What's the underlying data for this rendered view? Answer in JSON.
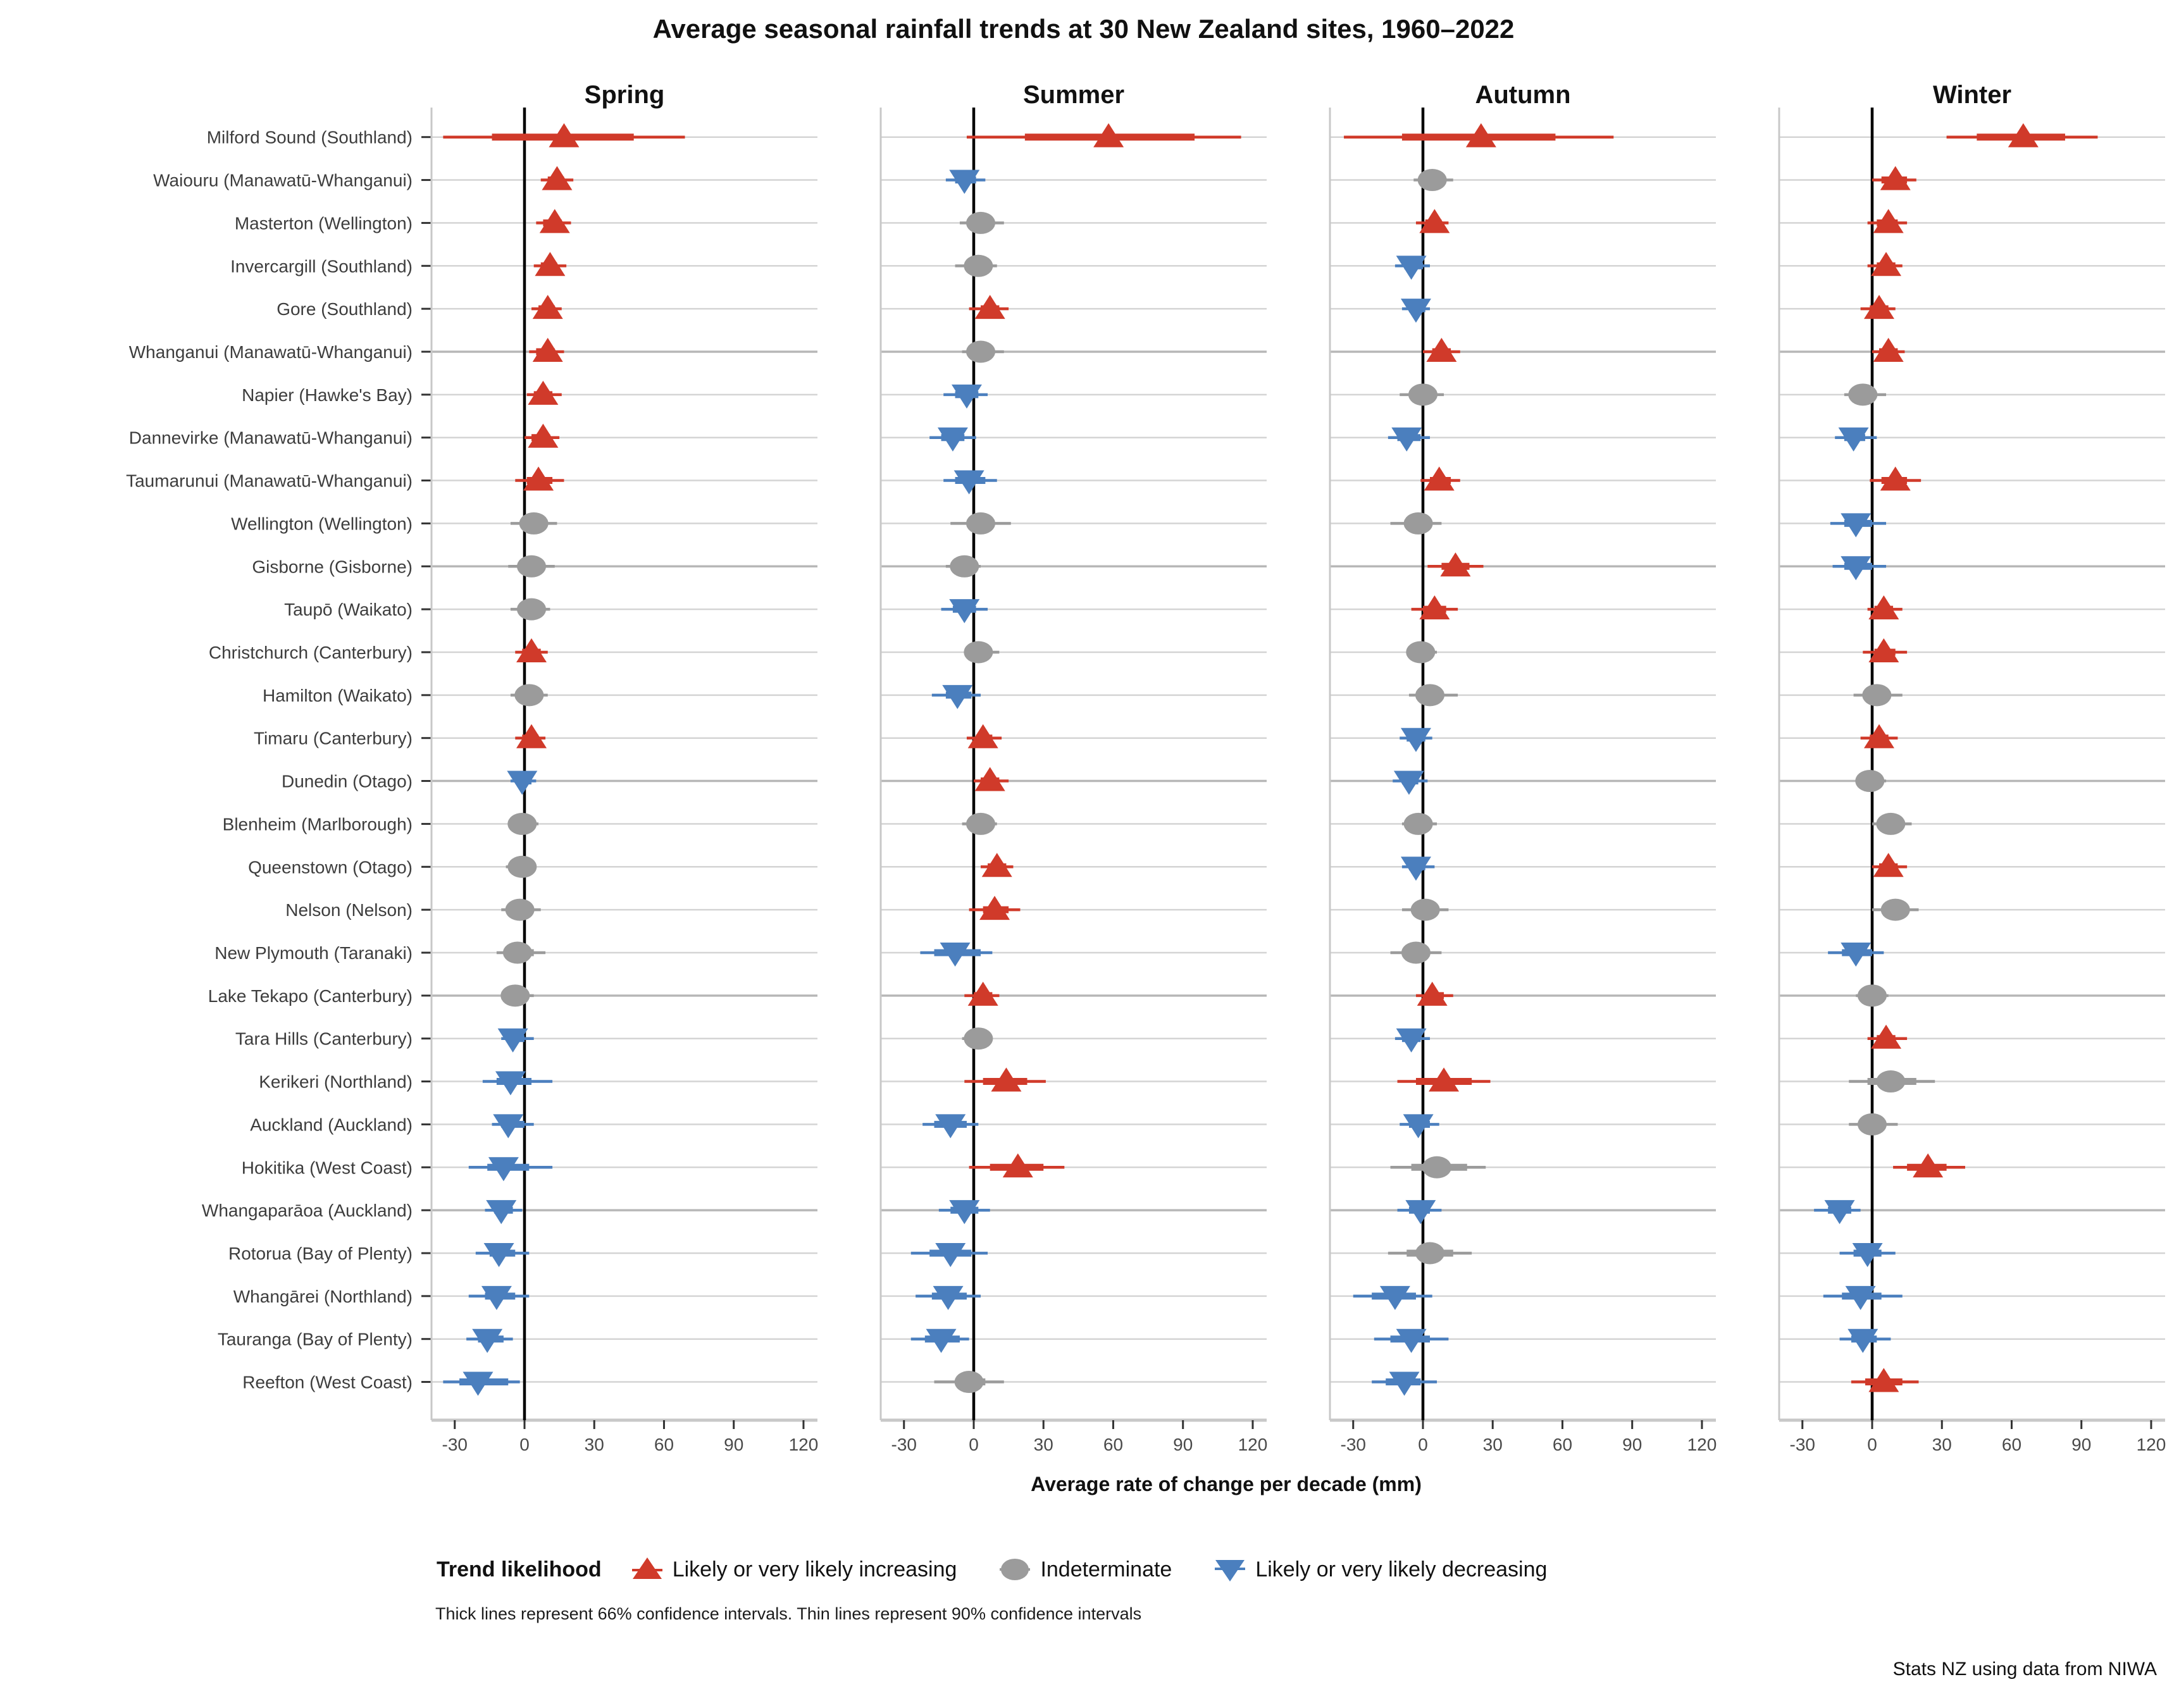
{
  "title": "Average seasonal rainfall trends at 30 New Zealand sites, 1960–2022",
  "footnote": "Thick lines represent 66% confidence intervals. Thin lines represent 90% confidence intervals",
  "source": "Stats NZ using data from NIWA",
  "legend": {
    "title": "Trend likelihood",
    "items": [
      {
        "kind": "inc",
        "label": "Likely or very likely increasing"
      },
      {
        "kind": "ind",
        "label": "Indeterminate"
      },
      {
        "kind": "dec",
        "label": "Likely or very likely decreasing"
      }
    ]
  },
  "chart_data": {
    "type": "dot-interval",
    "title": "Average seasonal rainfall trends at 30 New Zealand sites, 1960–2022",
    "xlabel": "Average rate of change per decade (mm)",
    "x_ticks": [
      -30,
      0,
      30,
      60,
      90,
      120
    ],
    "xlim": [
      -40,
      126
    ],
    "grid": "horizontal",
    "legend_position": "bottom",
    "units": "mm per decade",
    "interval_note": {
      "thick": "66% confidence interval",
      "thin": "90% confidence interval"
    },
    "colors": {
      "inc": "#d03a2a",
      "ind": "#9b9b9b",
      "dec": "#4b7fbe",
      "zero_line": "#000000",
      "grid": "#d4d4d4",
      "grid_major": "#b7b7b7",
      "panel_border": "#c8c8c8",
      "tick_text": "#4a4a4a",
      "site_text": "#3d3d3d"
    },
    "marker_key": "each point = [estimate, lo66, hi66, lo90, hi90, kind] where kind inc=red up-triangle, ind=grey circle, dec=blue down-triangle",
    "seasons": [
      "Spring",
      "Summer",
      "Autumn",
      "Winter"
    ],
    "sites": [
      "Milford Sound (Southland)",
      "Waiouru (Manawatū-Whanganui)",
      "Masterton (Wellington)",
      "Invercargill (Southland)",
      "Gore (Southland)",
      "Whanganui (Manawatū-Whanganui)",
      "Napier (Hawke's Bay)",
      "Dannevirke (Manawatū-Whanganui)",
      "Taumarunui (Manawatū-Whanganui)",
      "Wellington (Wellington)",
      "Gisborne (Gisborne)",
      "Taupō (Waikato)",
      "Christchurch (Canterbury)",
      "Hamilton (Waikato)",
      "Timaru (Canterbury)",
      "Dunedin (Otago)",
      "Blenheim (Marlborough)",
      "Queenstown (Otago)",
      "Nelson (Nelson)",
      "New Plymouth (Taranaki)",
      "Lake Tekapo (Canterbury)",
      "Tara Hills (Canterbury)",
      "Kerikeri (Northland)",
      "Auckland (Auckland)",
      "Hokitika (West Coast)",
      "Whangaparāoa (Auckland)",
      "Rotorua (Bay of Plenty)",
      "Whangārei (Northland)",
      "Tauranga (Bay of Plenty)",
      "Reefton (West Coast)"
    ],
    "series": [
      {
        "season": "Spring",
        "points": [
          [
            17,
            -14,
            47,
            -35,
            69,
            "inc"
          ],
          [
            14,
            10,
            17,
            7,
            21,
            "inc"
          ],
          [
            13,
            8,
            16,
            5,
            20,
            "inc"
          ],
          [
            11,
            7,
            14,
            4,
            18,
            "inc"
          ],
          [
            10,
            6,
            13,
            3,
            16,
            "inc"
          ],
          [
            10,
            5,
            13,
            2,
            17,
            "inc"
          ],
          [
            8,
            4,
            12,
            1,
            16,
            "inc"
          ],
          [
            8,
            3,
            11,
            0,
            15,
            "inc"
          ],
          [
            6,
            1,
            12,
            -4,
            17,
            "inc"
          ],
          [
            4,
            -1,
            9,
            -6,
            14,
            "ind"
          ],
          [
            3,
            -2,
            8,
            -7,
            13,
            "ind"
          ],
          [
            3,
            -2,
            7,
            -6,
            11,
            "ind"
          ],
          [
            3,
            -1,
            7,
            -4,
            10,
            "inc"
          ],
          [
            2,
            -2,
            6,
            -6,
            10,
            "ind"
          ],
          [
            3,
            -1,
            6,
            -4,
            9,
            "inc"
          ],
          [
            -1,
            -3,
            3,
            -6,
            5,
            "dec"
          ],
          [
            -1,
            -3,
            3,
            -7,
            6,
            "ind"
          ],
          [
            -1,
            -4,
            2,
            -8,
            5,
            "ind"
          ],
          [
            -2,
            -5,
            3,
            -10,
            7,
            "ind"
          ],
          [
            -3,
            -7,
            4,
            -12,
            9,
            "ind"
          ],
          [
            -4,
            -6,
            1,
            -9,
            4,
            "ind"
          ],
          [
            -5,
            -7,
            0,
            -10,
            4,
            "dec"
          ],
          [
            -6,
            -12,
            3,
            -18,
            12,
            "dec"
          ],
          [
            -7,
            -10,
            0,
            -14,
            4,
            "dec"
          ],
          [
            -9,
            -16,
            2,
            -24,
            12,
            "dec"
          ],
          [
            -10,
            -13,
            -5,
            -17,
            -1,
            "dec"
          ],
          [
            -11,
            -15,
            -4,
            -21,
            2,
            "dec"
          ],
          [
            -12,
            -17,
            -4,
            -24,
            2,
            "dec"
          ],
          [
            -16,
            -20,
            -9,
            -25,
            -5,
            "dec"
          ],
          [
            -20,
            -28,
            -7,
            -35,
            -2,
            "dec"
          ]
        ]
      },
      {
        "season": "Summer",
        "points": [
          [
            58,
            22,
            95,
            -3,
            115,
            "inc"
          ],
          [
            -4,
            -8,
            1,
            -12,
            5,
            "dec"
          ],
          [
            3,
            0,
            7,
            -6,
            13,
            "ind"
          ],
          [
            2,
            -3,
            6,
            -8,
            10,
            "ind"
          ],
          [
            7,
            3,
            11,
            -2,
            15,
            "inc"
          ],
          [
            3,
            0,
            8,
            -5,
            13,
            "ind"
          ],
          [
            -3,
            -8,
            2,
            -13,
            6,
            "dec"
          ],
          [
            -9,
            -14,
            -4,
            -19,
            1,
            "dec"
          ],
          [
            -2,
            -8,
            5,
            -13,
            10,
            "dec"
          ],
          [
            3,
            -3,
            9,
            -10,
            16,
            "ind"
          ],
          [
            -4,
            -8,
            0,
            -12,
            3,
            "ind"
          ],
          [
            -4,
            -9,
            1,
            -14,
            6,
            "dec"
          ],
          [
            2,
            0,
            7,
            -4,
            11,
            "ind"
          ],
          [
            -7,
            -12,
            -1,
            -18,
            3,
            "dec"
          ],
          [
            4,
            1,
            8,
            -3,
            12,
            "inc"
          ],
          [
            7,
            3,
            11,
            0,
            15,
            "inc"
          ],
          [
            3,
            -1,
            7,
            -5,
            10,
            "ind"
          ],
          [
            10,
            6,
            14,
            3,
            17,
            "inc"
          ],
          [
            9,
            4,
            15,
            -2,
            20,
            "inc"
          ],
          [
            -8,
            -17,
            3,
            -23,
            8,
            "dec"
          ],
          [
            4,
            0,
            8,
            -4,
            11,
            "inc"
          ],
          [
            2,
            -2,
            5,
            -5,
            8,
            "ind"
          ],
          [
            14,
            4,
            23,
            -4,
            31,
            "inc"
          ],
          [
            -10,
            -17,
            -3,
            -22,
            2,
            "dec"
          ],
          [
            19,
            7,
            30,
            -2,
            39,
            "inc"
          ],
          [
            -4,
            -10,
            2,
            -15,
            7,
            "dec"
          ],
          [
            -10,
            -19,
            -1,
            -27,
            6,
            "dec"
          ],
          [
            -11,
            -18,
            -3,
            -25,
            3,
            "dec"
          ],
          [
            -14,
            -21,
            -6,
            -27,
            -2,
            "dec"
          ],
          [
            -2,
            -8,
            5,
            -17,
            13,
            "ind"
          ]
        ]
      },
      {
        "season": "Autumn",
        "points": [
          [
            25,
            -9,
            57,
            -34,
            82,
            "inc"
          ],
          [
            4,
            0,
            9,
            -4,
            13,
            "ind"
          ],
          [
            5,
            1,
            8,
            -3,
            11,
            "inc"
          ],
          [
            -5,
            -8,
            0,
            -12,
            3,
            "dec"
          ],
          [
            -3,
            -6,
            1,
            -9,
            3,
            "dec"
          ],
          [
            8,
            4,
            12,
            0,
            16,
            "inc"
          ],
          [
            0,
            -5,
            4,
            -10,
            9,
            "ind"
          ],
          [
            -7,
            -11,
            -1,
            -15,
            3,
            "dec"
          ],
          [
            7,
            3,
            12,
            -1,
            16,
            "inc"
          ],
          [
            -2,
            -8,
            3,
            -14,
            8,
            "ind"
          ],
          [
            14,
            8,
            20,
            2,
            26,
            "inc"
          ],
          [
            5,
            0,
            10,
            -5,
            15,
            "inc"
          ],
          [
            -1,
            -4,
            2,
            -7,
            6,
            "ind"
          ],
          [
            3,
            -1,
            8,
            -6,
            15,
            "ind"
          ],
          [
            -3,
            -7,
            1,
            -10,
            4,
            "dec"
          ],
          [
            -6,
            -9,
            -2,
            -13,
            2,
            "dec"
          ],
          [
            -2,
            -6,
            2,
            -9,
            6,
            "ind"
          ],
          [
            -3,
            -6,
            1,
            -9,
            5,
            "dec"
          ],
          [
            1,
            -4,
            6,
            -9,
            11,
            "ind"
          ],
          [
            -3,
            -8,
            3,
            -14,
            8,
            "ind"
          ],
          [
            4,
            1,
            9,
            -3,
            13,
            "inc"
          ],
          [
            -5,
            -9,
            -1,
            -12,
            3,
            "dec"
          ],
          [
            9,
            -3,
            21,
            -11,
            29,
            "inc"
          ],
          [
            -2,
            -6,
            3,
            -10,
            7,
            "dec"
          ],
          [
            6,
            -5,
            19,
            -14,
            27,
            "ind"
          ],
          [
            -1,
            -6,
            3,
            -11,
            8,
            "dec"
          ],
          [
            3,
            -7,
            13,
            -15,
            21,
            "ind"
          ],
          [
            -12,
            -22,
            -3,
            -30,
            4,
            "dec"
          ],
          [
            -5,
            -14,
            3,
            -21,
            11,
            "dec"
          ],
          [
            -8,
            -16,
            -1,
            -22,
            6,
            "dec"
          ]
        ]
      },
      {
        "season": "Winter",
        "points": [
          [
            65,
            45,
            83,
            32,
            97,
            "inc"
          ],
          [
            10,
            4,
            15,
            0,
            19,
            "inc"
          ],
          [
            7,
            2,
            11,
            -2,
            15,
            "inc"
          ],
          [
            6,
            2,
            10,
            -2,
            13,
            "inc"
          ],
          [
            3,
            -1,
            7,
            -5,
            10,
            "inc"
          ],
          [
            7,
            3,
            11,
            0,
            14,
            "inc"
          ],
          [
            -4,
            -8,
            1,
            -12,
            6,
            "ind"
          ],
          [
            -8,
            -12,
            -3,
            -16,
            2,
            "dec"
          ],
          [
            10,
            4,
            15,
            -1,
            21,
            "inc"
          ],
          [
            -7,
            -12,
            0,
            -18,
            6,
            "dec"
          ],
          [
            -7,
            -12,
            0,
            -17,
            6,
            "dec"
          ],
          [
            5,
            1,
            9,
            -2,
            13,
            "inc"
          ],
          [
            5,
            1,
            10,
            -4,
            15,
            "inc"
          ],
          [
            2,
            -3,
            8,
            -8,
            13,
            "ind"
          ],
          [
            3,
            -1,
            7,
            -5,
            11,
            "inc"
          ],
          [
            -1,
            -4,
            2,
            -7,
            6,
            "ind"
          ],
          [
            8,
            4,
            13,
            0,
            17,
            "ind"
          ],
          [
            7,
            3,
            11,
            0,
            15,
            "inc"
          ],
          [
            10,
            5,
            15,
            0,
            20,
            "ind"
          ],
          [
            -7,
            -13,
            0,
            -19,
            5,
            "dec"
          ],
          [
            0,
            -4,
            3,
            -7,
            7,
            "ind"
          ],
          [
            6,
            2,
            10,
            -2,
            15,
            "inc"
          ],
          [
            8,
            -2,
            19,
            -10,
            27,
            "ind"
          ],
          [
            0,
            -5,
            5,
            -10,
            11,
            "ind"
          ],
          [
            24,
            15,
            32,
            9,
            40,
            "inc"
          ],
          [
            -14,
            -19,
            -9,
            -25,
            -5,
            "dec"
          ],
          [
            -2,
            -8,
            4,
            -14,
            10,
            "dec"
          ],
          [
            -5,
            -13,
            4,
            -21,
            13,
            "dec"
          ],
          [
            -4,
            -9,
            2,
            -14,
            8,
            "dec"
          ],
          [
            5,
            -3,
            13,
            -9,
            20,
            "inc"
          ]
        ]
      }
    ]
  }
}
